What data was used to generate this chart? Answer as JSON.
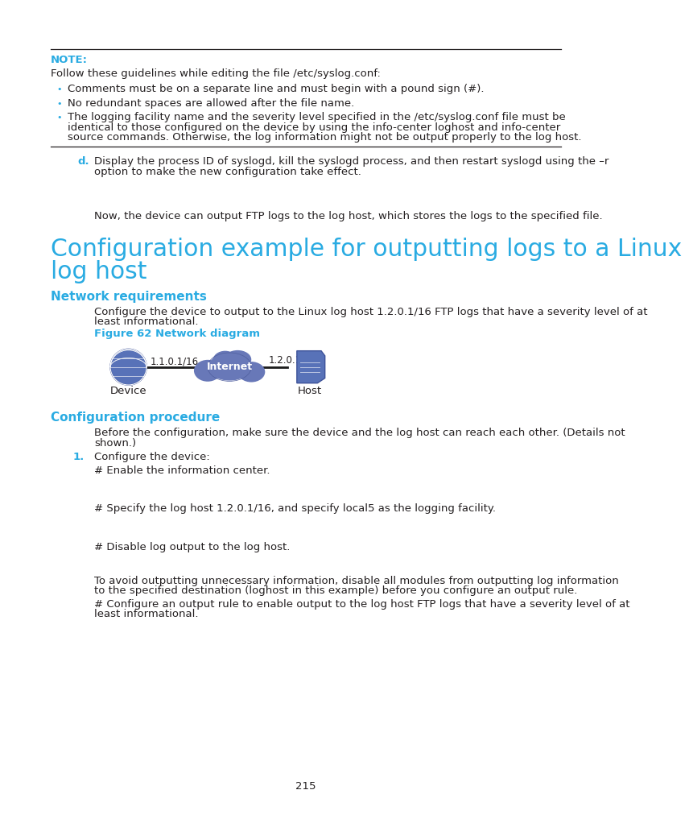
{
  "bg_color": "#ffffff",
  "text_color": "#231f20",
  "cyan_color": "#29abe2",
  "line_color": "#231f20",
  "note_label": "NOTE:",
  "section_title_line1": "Configuration example for outputting logs to a Linux",
  "section_title_line2": "log host",
  "subsection1": "Network requirements",
  "subsection2": "Configuration procedure",
  "figure_label": "Figure 62 Network diagram",
  "device_label": "Device",
  "host_label": "Host",
  "internet_label": "Internet",
  "ip_device": "1.1.0.1/16",
  "ip_host": "1.2.0.1/16",
  "page_num": "215",
  "icon_blue": "#5872b8",
  "icon_dark_blue": "#3d5299",
  "internet_blue": "#6878b8",
  "internet_dark": "#505f9e"
}
